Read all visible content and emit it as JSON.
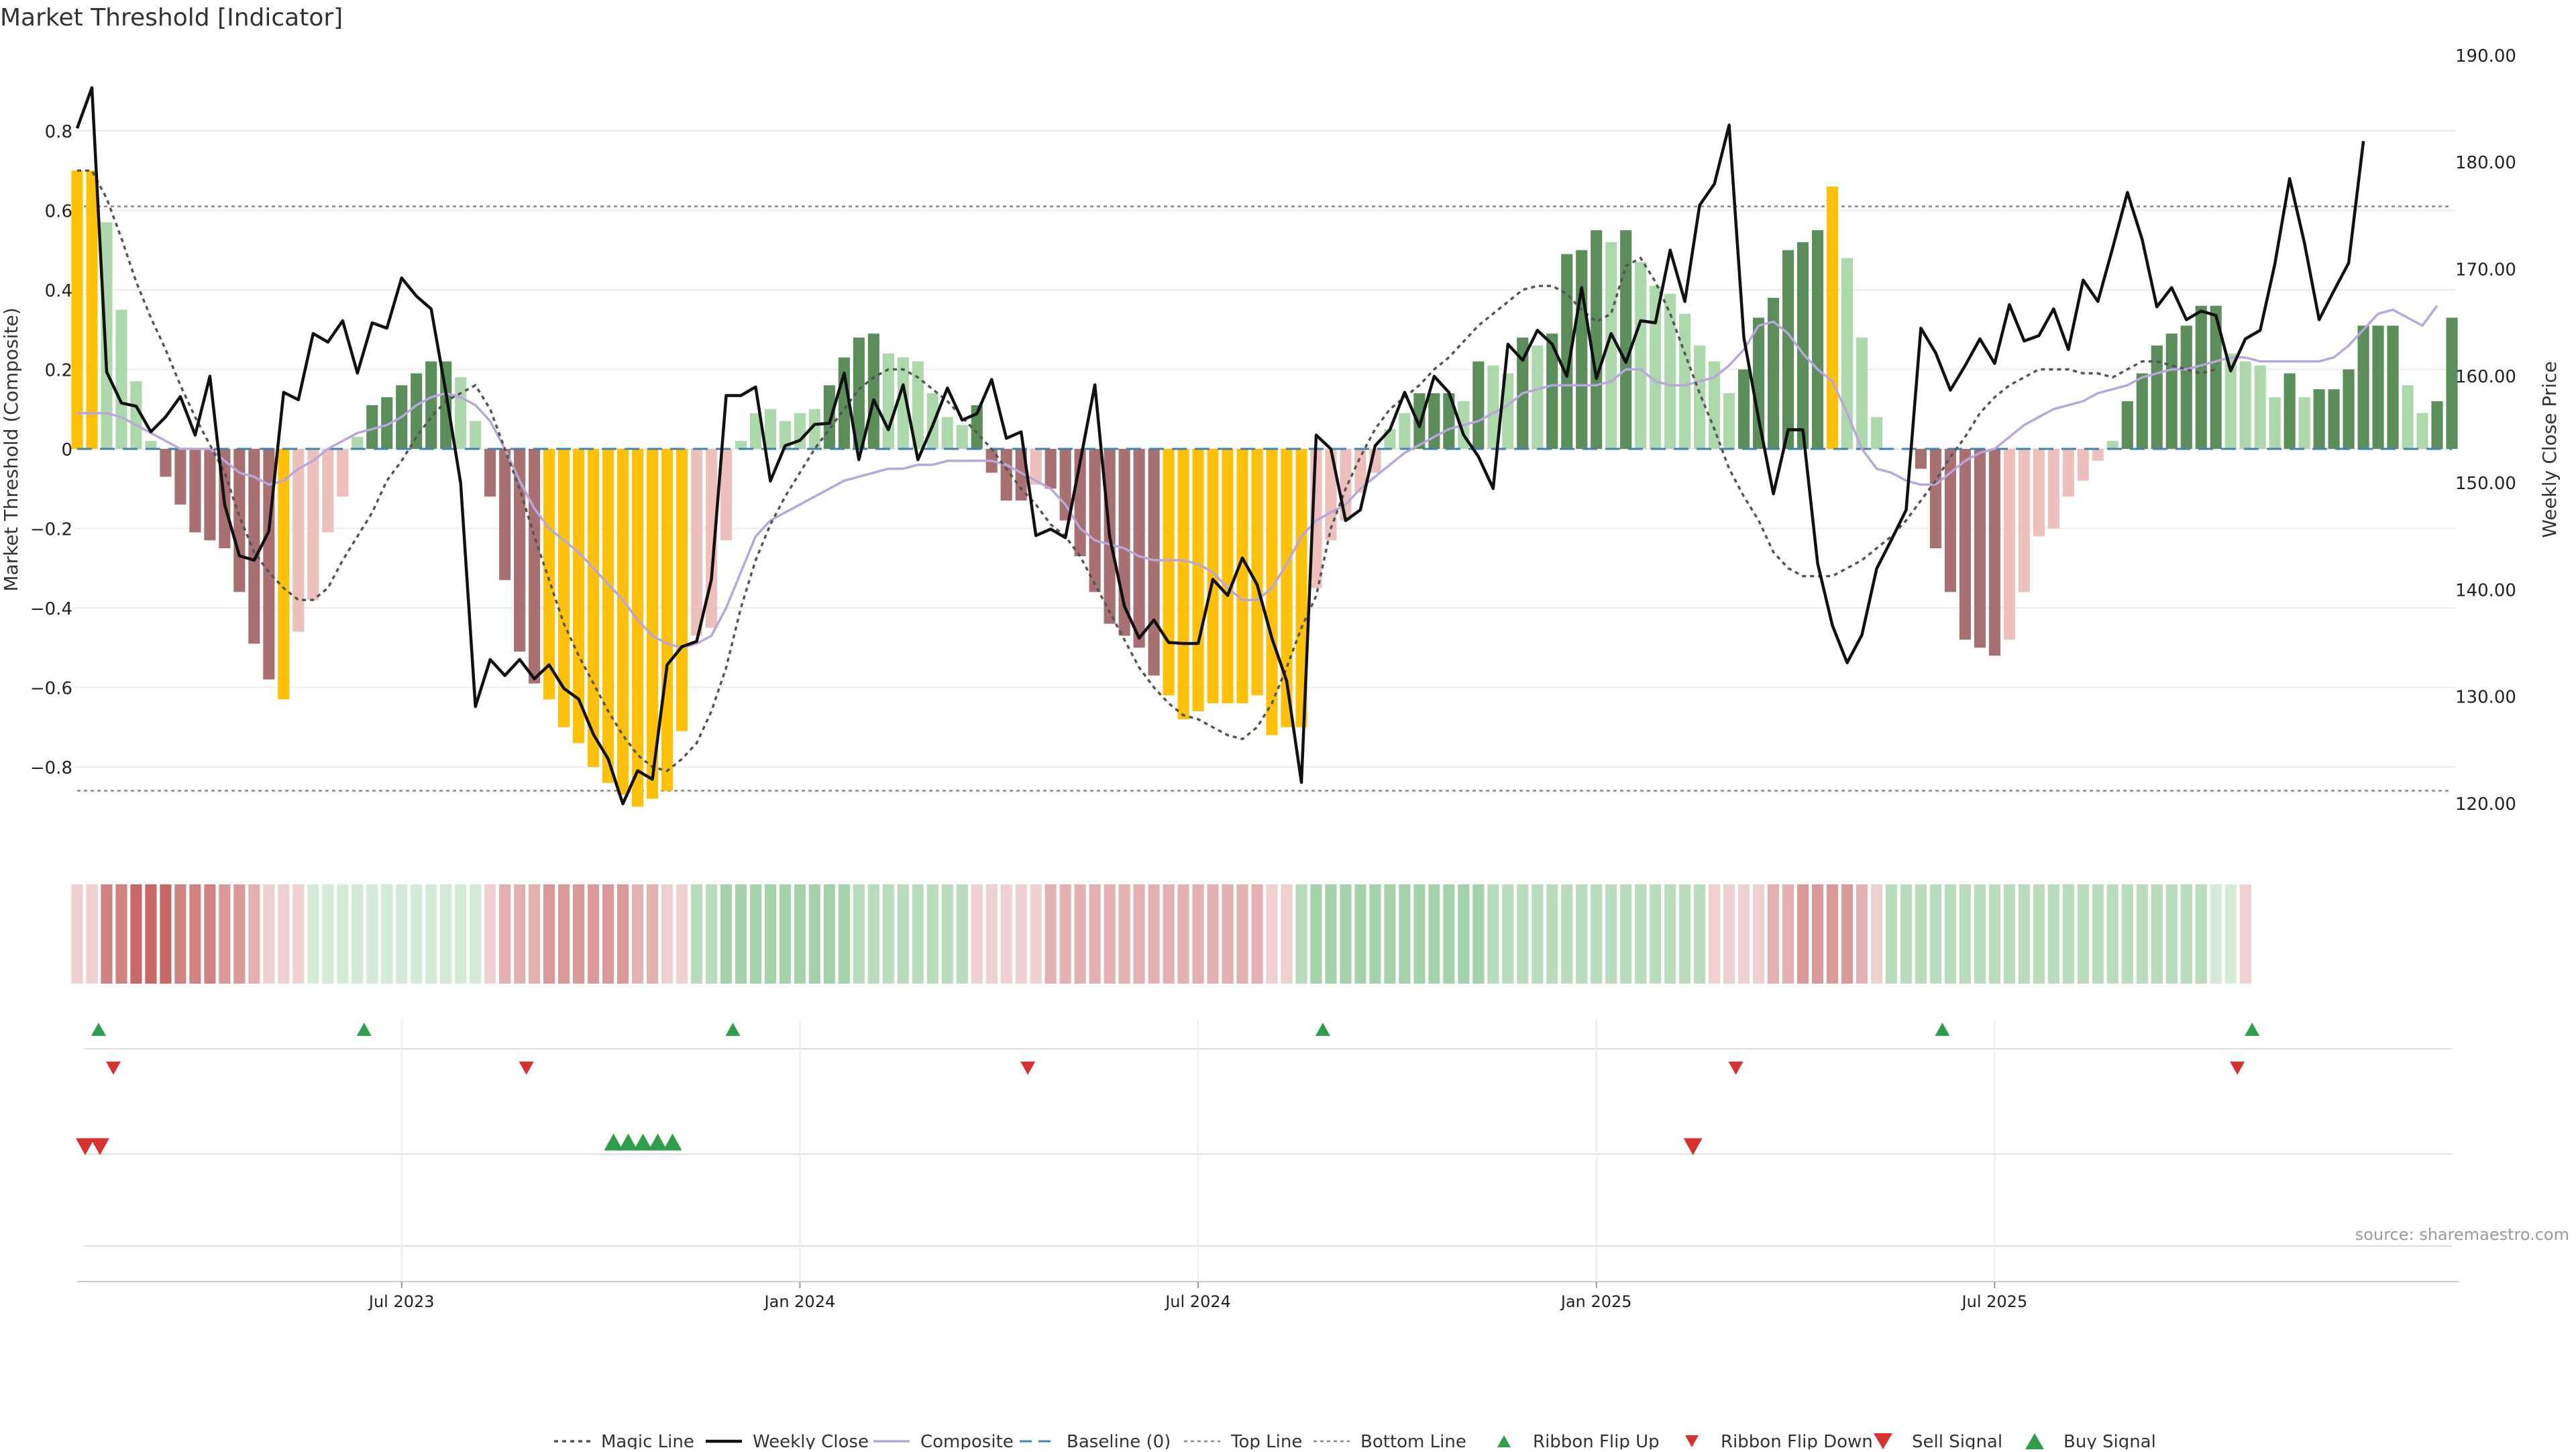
{
  "title": "Market Threshold [Indicator]",
  "source": "source: sharemaestro.com",
  "colors": {
    "gold": "#ffc107",
    "bull_strong": "#5b8e5b",
    "bull_weak": "#acd8ac",
    "bear_strong": "#a87070",
    "bear_weak": "#eec0bb",
    "close": "#111111",
    "composite": "#b9a6dc",
    "magic": "#555555",
    "baseline": "#3e84b0",
    "threshold": "#888888",
    "ribbon_up": "#2e9e4a",
    "ribbon_down": "#d93030",
    "ribbon_green": "#8fca98",
    "ribbon_red": "#c76767"
  },
  "chart_data": {
    "type": "bar",
    "x_type": "weekly dates",
    "x_ticks": [
      "Jul 2023",
      "Jan 2024",
      "Jul 2024",
      "Jan 2025",
      "Jul 2025"
    ],
    "x_tick_week_index": [
      22,
      49,
      76,
      103,
      130
    ],
    "y_left": {
      "label": "Market Threshold (Composite)",
      "ylim": [
        -0.92,
        1.0
      ],
      "ticks": [
        -0.8,
        -0.6,
        -0.4,
        -0.2,
        0,
        0.2,
        0.4,
        0.6,
        0.8
      ],
      "tick_labels": [
        "−0.8",
        "−0.6",
        "−0.4",
        "−0.2",
        "0",
        "0.2",
        "0.4",
        "0.6",
        "0.8"
      ]
    },
    "y_right": {
      "label": "Weekly Close Price",
      "ylim": [
        115,
        190
      ],
      "ticks": [
        120,
        130,
        140,
        150,
        160,
        170,
        180,
        190
      ],
      "tick_labels": [
        "120.00",
        "130.00",
        "140.00",
        "150.00",
        "160.00",
        "170.00",
        "180.00",
        "190.00"
      ]
    },
    "top_line": 0.61,
    "bottom_line": -0.86,
    "histogram": [
      0.7,
      0.7,
      0.57,
      0.35,
      0.17,
      0.02,
      -0.07,
      -0.14,
      -0.21,
      -0.23,
      -0.25,
      -0.36,
      -0.49,
      -0.58,
      -0.63,
      -0.46,
      -0.38,
      -0.21,
      -0.12,
      0.03,
      0.11,
      0.13,
      0.16,
      0.19,
      0.22,
      0.22,
      0.18,
      0.07,
      -0.12,
      -0.33,
      -0.51,
      -0.59,
      -0.63,
      -0.7,
      -0.74,
      -0.8,
      -0.84,
      -0.87,
      -0.9,
      -0.88,
      -0.86,
      -0.71,
      -0.47,
      -0.45,
      -0.23,
      0.02,
      0.09,
      0.1,
      0.07,
      0.09,
      0.1,
      0.16,
      0.23,
      0.28,
      0.29,
      0.24,
      0.23,
      0.22,
      0.14,
      0.08,
      0.06,
      0.11,
      -0.06,
      -0.13,
      -0.13,
      -0.09,
      -0.1,
      -0.18,
      -0.27,
      -0.36,
      -0.44,
      -0.47,
      -0.5,
      -0.57,
      -0.62,
      -0.68,
      -0.66,
      -0.64,
      -0.64,
      -0.64,
      -0.62,
      -0.72,
      -0.7,
      -0.7,
      -0.35,
      -0.23,
      -0.18,
      -0.11,
      -0.06,
      0.05,
      0.09,
      0.14,
      0.14,
      0.14,
      0.12,
      0.22,
      0.21,
      0.19,
      0.28,
      0.26,
      0.29,
      0.49,
      0.5,
      0.55,
      0.52,
      0.55,
      0.47,
      0.41,
      0.39,
      0.34,
      0.26,
      0.22,
      0.14,
      0.2,
      0.33,
      0.38,
      0.5,
      0.52,
      0.55,
      0.66,
      0.48,
      0.28,
      0.08,
      0.0,
      0.0,
      -0.05,
      -0.25,
      -0.36,
      -0.48,
      -0.5,
      -0.52,
      -0.48,
      -0.36,
      -0.22,
      -0.2,
      -0.12,
      -0.08,
      -0.03,
      0.02,
      0.12,
      0.19,
      0.26,
      0.29,
      0.31,
      0.36,
      0.36,
      0.24,
      0.22,
      0.21,
      0.13,
      0.19,
      0.13,
      0.15,
      0.15,
      0.2,
      0.31,
      0.31,
      0.31,
      0.16,
      0.09,
      0.12,
      0.33
    ],
    "weekly_close": [
      183.2,
      187.0,
      160.4,
      157.5,
      157.2,
      154.8,
      156.2,
      158.1,
      154.5,
      160.0,
      148.0,
      143.2,
      142.8,
      145.5,
      158.5,
      157.8,
      164.0,
      163.2,
      165.2,
      160.3,
      165.0,
      164.5,
      169.2,
      167.5,
      166.3,
      158.5,
      150.0,
      129.1,
      133.5,
      132.0,
      133.5,
      131.7,
      133.0,
      130.8,
      129.8,
      126.5,
      124.2,
      120.0,
      123.1,
      122.3,
      133.0,
      134.7,
      135.2,
      141.0,
      158.2,
      158.2,
      159.0,
      150.2,
      153.5,
      154.0,
      155.5,
      155.6,
      160.3,
      152.2,
      157.8,
      155.0,
      159.2,
      152.2,
      155.4,
      158.9,
      155.9,
      156.5,
      159.7,
      154.2,
      154.8,
      145.1,
      145.7,
      144.9,
      152.0,
      159.2,
      145.0,
      138.5,
      135.5,
      137.2,
      135.1,
      135.0,
      135.0,
      141.0,
      139.5,
      143.0,
      140.5,
      135.5,
      131.5,
      122.0,
      154.5,
      153.2,
      146.5,
      147.5,
      153.5,
      155.0,
      158.5,
      155.3,
      160.0,
      158.5,
      154.5,
      152.5,
      149.5,
      163.0,
      161.5,
      164.3,
      163.0,
      160.0,
      168.3,
      159.8,
      164.0,
      161.3,
      165.2,
      165.0,
      171.8,
      167.0,
      176.0,
      178.0,
      183.5,
      163.6,
      156.0,
      149.0,
      155.0,
      155.0,
      142.5,
      136.7,
      133.2,
      135.8,
      142.0,
      144.7,
      147.5,
      164.5,
      162.2,
      158.7,
      161.0,
      163.5,
      161.2,
      166.7,
      163.3,
      163.8,
      166.3,
      162.5,
      169.0,
      167.0,
      172.0,
      177.2,
      172.8,
      166.5,
      168.3,
      165.3,
      166.1,
      165.7,
      160.5,
      163.5,
      164.3,
      170.5,
      178.5,
      172.5,
      165.3,
      168.0,
      170.6,
      182.0
    ],
    "composite": [
      0.09,
      0.09,
      0.09,
      0.08,
      0.06,
      0.04,
      0.02,
      0.0,
      0.0,
      0.0,
      -0.03,
      -0.06,
      -0.07,
      -0.09,
      -0.08,
      -0.05,
      -0.03,
      0.0,
      0.02,
      0.04,
      0.05,
      0.06,
      0.08,
      0.11,
      0.13,
      0.14,
      0.13,
      0.11,
      0.07,
      0.0,
      -0.08,
      -0.15,
      -0.2,
      -0.23,
      -0.26,
      -0.3,
      -0.34,
      -0.38,
      -0.43,
      -0.47,
      -0.49,
      -0.5,
      -0.49,
      -0.47,
      -0.4,
      -0.31,
      -0.22,
      -0.18,
      -0.16,
      -0.14,
      -0.12,
      -0.1,
      -0.08,
      -0.07,
      -0.06,
      -0.05,
      -0.05,
      -0.04,
      -0.04,
      -0.03,
      -0.03,
      -0.03,
      -0.03,
      -0.04,
      -0.06,
      -0.08,
      -0.1,
      -0.14,
      -0.2,
      -0.23,
      -0.24,
      -0.25,
      -0.27,
      -0.28,
      -0.28,
      -0.28,
      -0.29,
      -0.31,
      -0.35,
      -0.38,
      -0.38,
      -0.35,
      -0.29,
      -0.22,
      -0.18,
      -0.16,
      -0.14,
      -0.1,
      -0.07,
      -0.04,
      -0.01,
      0.01,
      0.03,
      0.05,
      0.06,
      0.07,
      0.09,
      0.11,
      0.14,
      0.15,
      0.16,
      0.16,
      0.16,
      0.16,
      0.17,
      0.2,
      0.2,
      0.17,
      0.16,
      0.16,
      0.17,
      0.18,
      0.21,
      0.25,
      0.31,
      0.32,
      0.29,
      0.24,
      0.2,
      0.17,
      0.09,
      0.0,
      -0.05,
      -0.06,
      -0.08,
      -0.09,
      -0.09,
      -0.06,
      -0.03,
      -0.01,
      0.0,
      0.03,
      0.06,
      0.08,
      0.1,
      0.11,
      0.12,
      0.14,
      0.15,
      0.16,
      0.18,
      0.19,
      0.2,
      0.2,
      0.21,
      0.22,
      0.23,
      0.23,
      0.22,
      0.22,
      0.22,
      0.22,
      0.22,
      0.23,
      0.26,
      0.3,
      0.34,
      0.35,
      0.33,
      0.31,
      0.36
    ],
    "magic_line": [
      0.7,
      0.7,
      0.63,
      0.53,
      0.42,
      0.33,
      0.25,
      0.16,
      0.08,
      0.01,
      -0.06,
      -0.17,
      -0.26,
      -0.31,
      -0.35,
      -0.38,
      -0.38,
      -0.35,
      -0.28,
      -0.22,
      -0.16,
      -0.08,
      -0.03,
      0.03,
      0.08,
      0.12,
      0.14,
      0.16,
      0.1,
      0.0,
      -0.1,
      -0.22,
      -0.33,
      -0.44,
      -0.52,
      -0.59,
      -0.66,
      -0.72,
      -0.77,
      -0.8,
      -0.81,
      -0.78,
      -0.74,
      -0.66,
      -0.55,
      -0.4,
      -0.28,
      -0.19,
      -0.12,
      -0.06,
      0.0,
      0.05,
      0.1,
      0.15,
      0.18,
      0.2,
      0.2,
      0.18,
      0.15,
      0.12,
      0.08,
      0.04,
      0.0,
      -0.05,
      -0.1,
      -0.14,
      -0.19,
      -0.22,
      -0.27,
      -0.34,
      -0.41,
      -0.48,
      -0.55,
      -0.6,
      -0.64,
      -0.67,
      -0.68,
      -0.7,
      -0.72,
      -0.73,
      -0.7,
      -0.64,
      -0.55,
      -0.45,
      -0.37,
      -0.2,
      -0.1,
      -0.02,
      0.05,
      0.1,
      0.13,
      0.16,
      0.2,
      0.23,
      0.27,
      0.31,
      0.34,
      0.37,
      0.4,
      0.41,
      0.41,
      0.39,
      0.35,
      0.32,
      0.34,
      0.46,
      0.48,
      0.42,
      0.34,
      0.24,
      0.14,
      0.05,
      -0.05,
      -0.12,
      -0.18,
      -0.26,
      -0.3,
      -0.32,
      -0.32,
      -0.32,
      -0.3,
      -0.28,
      -0.25,
      -0.22,
      -0.18,
      -0.13,
      -0.08,
      -0.02,
      0.03,
      0.09,
      0.13,
      0.16,
      0.18,
      0.2,
      0.2,
      0.2,
      0.19,
      0.19,
      0.18,
      0.2,
      0.22,
      0.22,
      0.21,
      0.2,
      0.19,
      0.2
    ],
    "ribbon": [
      -1,
      -1,
      -4,
      -4,
      -5,
      -5,
      -5,
      -4,
      -4,
      -4,
      -3,
      -3,
      -2,
      -1,
      -1,
      -1,
      1,
      1,
      1,
      1,
      1,
      1,
      1,
      1,
      1,
      1,
      1,
      1,
      -1,
      -2,
      -2,
      -2,
      -3,
      -3,
      -3,
      -3,
      -3,
      -3,
      -2,
      -2,
      -1,
      -1,
      2,
      2,
      3,
      3,
      3,
      3,
      3,
      3,
      3,
      3,
      3,
      2,
      2,
      2,
      2,
      2,
      2,
      2,
      2,
      -1,
      -1,
      -1,
      -1,
      -1,
      -2,
      -2,
      -2,
      -2,
      -2,
      -2,
      -2,
      -2,
      -2,
      -2,
      -2,
      -2,
      -2,
      -2,
      -2,
      -1,
      -1,
      2,
      3,
      3,
      3,
      3,
      3,
      3,
      3,
      3,
      3,
      3,
      3,
      3,
      2,
      2,
      2,
      2,
      2,
      2,
      2,
      2,
      2,
      2,
      2,
      2,
      2,
      2,
      2,
      -1,
      -1,
      -1,
      -1,
      -2,
      -2,
      -3,
      -3,
      -3,
      -3,
      -2,
      -1,
      2,
      2,
      2,
      2,
      2,
      2,
      2,
      2,
      2,
      2,
      2,
      2,
      2,
      2,
      2,
      2,
      2,
      2,
      2,
      2,
      2,
      2,
      1,
      1,
      -1
    ],
    "ribbon_flip_up_weeks": [
      1,
      19,
      44,
      84,
      126,
      147
    ],
    "ribbon_flip_down_weeks": [
      2,
      30,
      64,
      112,
      146
    ],
    "sell_signal_weeks": [
      0,
      1,
      109
    ],
    "buy_signal_weeks": [
      36,
      37,
      38,
      39,
      40
    ],
    "legend_position": "bottom-center",
    "legend": [
      {
        "label": "Magic Line",
        "kind": "dotted"
      },
      {
        "label": "Weekly Close",
        "kind": "solid"
      },
      {
        "label": "Composite",
        "kind": "composite"
      },
      {
        "label": "Baseline (0)",
        "kind": "dashed"
      },
      {
        "label": "Top Line",
        "kind": "thin-dotted"
      },
      {
        "label": "Bottom Line",
        "kind": "thin-dotted"
      },
      {
        "label": "Ribbon Flip Up",
        "kind": "tri-up-small"
      },
      {
        "label": "Ribbon Flip Down",
        "kind": "tri-down-small"
      },
      {
        "label": "Sell Signal",
        "kind": "tri-down"
      },
      {
        "label": "Buy Signal",
        "kind": "tri-up"
      }
    ]
  }
}
